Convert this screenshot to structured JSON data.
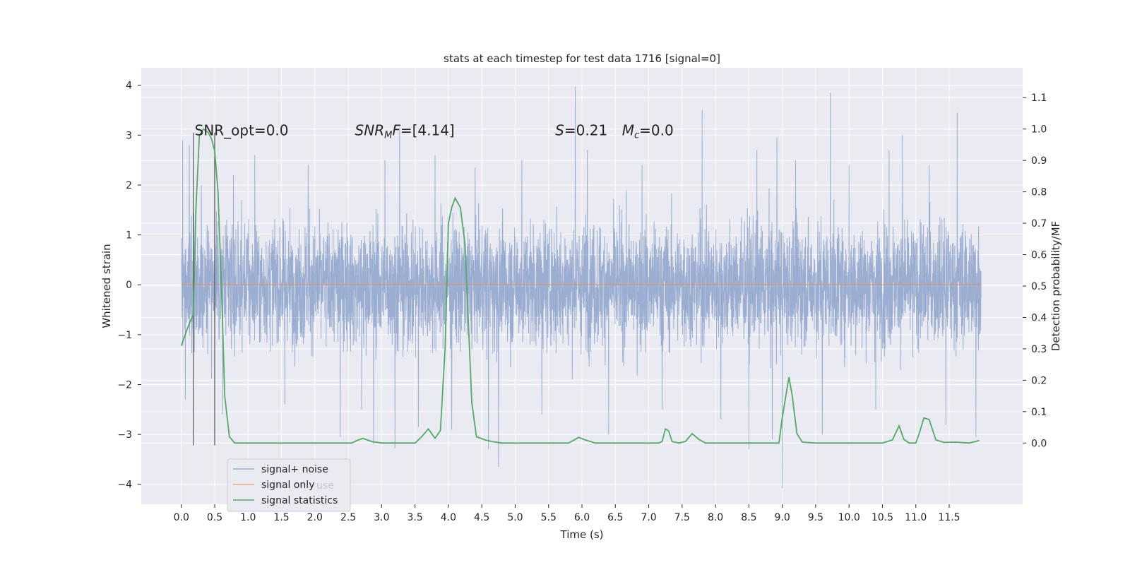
{
  "chart_data": {
    "type": "line",
    "title": "stats at each timestep for test data 1716 [signal=0]",
    "xlabel": "Time (s)",
    "ylabel": "Whitened strain",
    "ylabel_right": "Detection probability/MF",
    "xlim": [
      -0.6,
      12.6
    ],
    "ylim_left": [
      -4.4,
      4.35
    ],
    "ylim_right": [
      -0.195,
      1.195
    ],
    "x_ticks": [
      0.0,
      0.5,
      1.0,
      1.5,
      2.0,
      2.5,
      3.0,
      3.5,
      4.0,
      4.5,
      5.0,
      5.5,
      6.0,
      6.5,
      7.0,
      7.5,
      8.0,
      8.5,
      9.0,
      9.5,
      10.0,
      10.5,
      11.0,
      11.5
    ],
    "x_tick_labels": [
      "0.0",
      "0.5",
      "1.0",
      "1.5",
      "2.0",
      "2.5",
      "3.0",
      "3.5",
      "4.0",
      "4.5",
      "5.0",
      "5.5",
      "6.0",
      "6.5",
      "7.0",
      "7.5",
      "8.0",
      "8.5",
      "9.0",
      "9.5",
      "10.0",
      "10.5",
      "11.0",
      "11.5"
    ],
    "y_ticks_left": [
      -4,
      -3,
      -2,
      -1,
      0,
      1,
      2,
      3,
      4
    ],
    "y_tick_labels_left": [
      "−4",
      "−3",
      "−2",
      "−1",
      "0",
      "1",
      "2",
      "3",
      "4"
    ],
    "y_ticks_right": [
      0.0,
      0.1,
      0.2,
      0.3,
      0.4,
      0.5,
      0.6,
      0.7,
      0.8,
      0.9,
      1.0,
      1.1
    ],
    "y_tick_labels_right": [
      "0.0",
      "0.1",
      "0.2",
      "0.3",
      "0.4",
      "0.5",
      "0.6",
      "0.7",
      "0.8",
      "0.9",
      "1.0",
      "1.1"
    ],
    "grid": true,
    "background": "#eaeaf2",
    "annotations": [
      {
        "text": "SNR_opt=0.0",
        "x": 0.2,
        "y": 3.1,
        "italic": false
      },
      {
        "text": "F=[4.14]",
        "sym": "SNR",
        "sub": "M",
        "x": 2.6,
        "y": 3.1
      },
      {
        "text": "=0.21",
        "sym": "S",
        "x": 5.6,
        "y": 3.1
      },
      {
        "text": "=0.0",
        "sym": "M",
        "sub": "c",
        "x": 6.6,
        "y": 3.1
      }
    ],
    "vlines": [
      {
        "x": 0.18,
        "y0": -3.22,
        "y1": 3.05
      },
      {
        "x": 0.5,
        "y0": -3.22,
        "y1": 3.05
      }
    ],
    "series": [
      {
        "name": "signal+ noise",
        "axis": "left",
        "color": "#4c72b0",
        "note": "dense whitened noise over time 0.0–11.98 s",
        "x_range": [
          0.0,
          11.98
        ],
        "sample_rate": 400,
        "body_range": [
          -1.2,
          1.2
        ],
        "spikes": [
          {
            "x": 0.02,
            "y": 2.9
          },
          {
            "x": 0.06,
            "y": -2.3
          },
          {
            "x": 0.12,
            "y": 2.8
          },
          {
            "x": 0.3,
            "y": 2.0
          },
          {
            "x": 0.5,
            "y": 3.05
          },
          {
            "x": 0.62,
            "y": -2.6
          },
          {
            "x": 0.78,
            "y": 2.2
          },
          {
            "x": 1.1,
            "y": 2.6
          },
          {
            "x": 1.55,
            "y": -2.4
          },
          {
            "x": 1.9,
            "y": 2.4
          },
          {
            "x": 2.38,
            "y": -3.05
          },
          {
            "x": 2.7,
            "y": -2.5
          },
          {
            "x": 2.88,
            "y": -3.2
          },
          {
            "x": 3.05,
            "y": 2.5
          },
          {
            "x": 3.2,
            "y": -3.28
          },
          {
            "x": 3.27,
            "y": 3.15
          },
          {
            "x": 3.55,
            "y": -2.85
          },
          {
            "x": 3.8,
            "y": 2.6
          },
          {
            "x": 4.05,
            "y": -2.9
          },
          {
            "x": 4.4,
            "y": 2.35
          },
          {
            "x": 4.6,
            "y": -3.3
          },
          {
            "x": 4.75,
            "y": -3.65
          },
          {
            "x": 5.1,
            "y": 2.5
          },
          {
            "x": 5.4,
            "y": -2.6
          },
          {
            "x": 5.9,
            "y": 3.97
          },
          {
            "x": 6.08,
            "y": 2.7
          },
          {
            "x": 6.4,
            "y": -3.0
          },
          {
            "x": 6.9,
            "y": 2.4
          },
          {
            "x": 7.2,
            "y": -2.5
          },
          {
            "x": 7.8,
            "y": 3.5
          },
          {
            "x": 8.08,
            "y": -2.7
          },
          {
            "x": 8.5,
            "y": -3.3
          },
          {
            "x": 8.62,
            "y": 2.7
          },
          {
            "x": 8.85,
            "y": -3.1
          },
          {
            "x": 8.92,
            "y": 2.95
          },
          {
            "x": 9.0,
            "y": -4.08
          },
          {
            "x": 9.2,
            "y": 2.5
          },
          {
            "x": 9.6,
            "y": -3.0
          },
          {
            "x": 9.72,
            "y": 3.85
          },
          {
            "x": 10.0,
            "y": 2.4
          },
          {
            "x": 10.4,
            "y": -2.5
          },
          {
            "x": 10.6,
            "y": 2.7
          },
          {
            "x": 10.8,
            "y": 3.0
          },
          {
            "x": 11.2,
            "y": 2.4
          },
          {
            "x": 11.45,
            "y": -2.8
          },
          {
            "x": 11.62,
            "y": 3.45
          },
          {
            "x": 11.9,
            "y": -3.05
          }
        ]
      },
      {
        "name": "signal only",
        "axis": "left",
        "color": "#dd8452",
        "x": [
          0.0,
          11.98
        ],
        "values": [
          0.0,
          0.0
        ]
      },
      {
        "name": "signal statistics",
        "axis": "right",
        "color": "#55a868",
        "x": [
          0.0,
          0.1,
          0.18,
          0.22,
          0.27,
          0.33,
          0.4,
          0.45,
          0.5,
          0.55,
          0.6,
          0.65,
          0.72,
          0.8,
          1.5,
          2.0,
          2.55,
          2.65,
          2.72,
          2.85,
          3.0,
          3.2,
          3.5,
          3.6,
          3.7,
          3.8,
          3.88,
          3.95,
          4.0,
          4.05,
          4.1,
          4.18,
          4.25,
          4.35,
          4.42,
          4.55,
          4.65,
          4.8,
          5.0,
          5.5,
          5.8,
          5.95,
          6.05,
          6.2,
          6.5,
          7.0,
          7.15,
          7.2,
          7.25,
          7.3,
          7.35,
          7.45,
          7.55,
          7.65,
          7.75,
          7.85,
          8.0,
          8.5,
          8.95,
          9.0,
          9.1,
          9.15,
          9.22,
          9.3,
          9.5,
          10.0,
          10.5,
          10.65,
          10.75,
          10.82,
          10.9,
          11.0,
          11.05,
          11.12,
          11.2,
          11.3,
          11.42,
          11.6,
          11.8,
          11.95
        ],
        "values": [
          0.31,
          0.37,
          0.41,
          0.75,
          0.98,
          1.0,
          0.99,
          0.97,
          0.93,
          0.8,
          0.5,
          0.15,
          0.02,
          0.0,
          0.0,
          0.0,
          0.0,
          0.01,
          0.015,
          0.005,
          0.0,
          0.0,
          0.0,
          0.02,
          0.045,
          0.015,
          0.04,
          0.3,
          0.7,
          0.75,
          0.78,
          0.75,
          0.63,
          0.13,
          0.02,
          0.01,
          0.005,
          0.0,
          0.0,
          0.0,
          0.0,
          0.018,
          0.01,
          0.0,
          0.0,
          0.0,
          0.0,
          0.005,
          0.045,
          0.038,
          0.005,
          0.0,
          0.005,
          0.03,
          0.012,
          0.0,
          0.0,
          0.0,
          0.0,
          0.08,
          0.21,
          0.15,
          0.03,
          0.003,
          0.0,
          0.0,
          0.0,
          0.01,
          0.055,
          0.012,
          0.0,
          0.0,
          0.03,
          0.08,
          0.075,
          0.01,
          0.002,
          0.003,
          0.0,
          0.008
        ]
      }
    ],
    "legend": {
      "position": "lower-left",
      "entries": [
        "signal+ noise",
        "signal only",
        "signal statistics"
      ],
      "ghost_text": "use"
    }
  }
}
